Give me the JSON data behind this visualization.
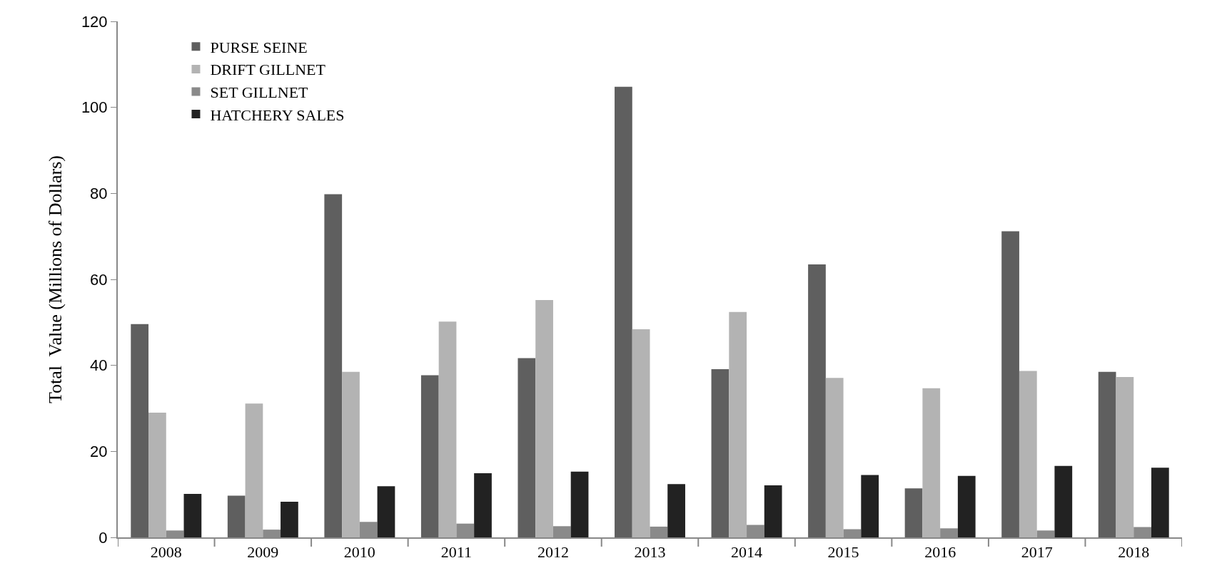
{
  "chart_data": {
    "type": "bar",
    "ylabel": "Total  Value (Millions of Dollars)",
    "categories": [
      "2008",
      "2009",
      "2010",
      "2011",
      "2012",
      "2013",
      "2014",
      "2015",
      "2016",
      "2017",
      "2018"
    ],
    "series": [
      {
        "name": "PURSE SEINE",
        "color": "#5f5f5f",
        "values": [
          49.6,
          9.7,
          79.8,
          37.7,
          41.7,
          104.8,
          39.1,
          63.5,
          11.4,
          71.2,
          38.5
        ]
      },
      {
        "name": "DRIFT GILLNET",
        "color": "#b3b3b3",
        "values": [
          29.0,
          31.1,
          38.5,
          50.2,
          55.2,
          48.4,
          52.4,
          37.1,
          34.7,
          38.7,
          37.3
        ]
      },
      {
        "name": "SET GILLNET",
        "color": "#8a8a8a",
        "values": [
          1.6,
          1.8,
          3.6,
          3.2,
          2.6,
          2.5,
          2.9,
          1.9,
          2.1,
          1.6,
          2.4
        ]
      },
      {
        "name": "HATCHERY SALES",
        "color": "#222222",
        "values": [
          10.1,
          8.3,
          11.9,
          14.9,
          15.3,
          12.4,
          12.1,
          14.5,
          14.3,
          16.6,
          16.2
        ]
      }
    ],
    "ylim": [
      0,
      120
    ],
    "yticks": [
      0,
      20,
      40,
      60,
      80,
      100,
      120
    ],
    "grid": false,
    "legend": "top left"
  }
}
